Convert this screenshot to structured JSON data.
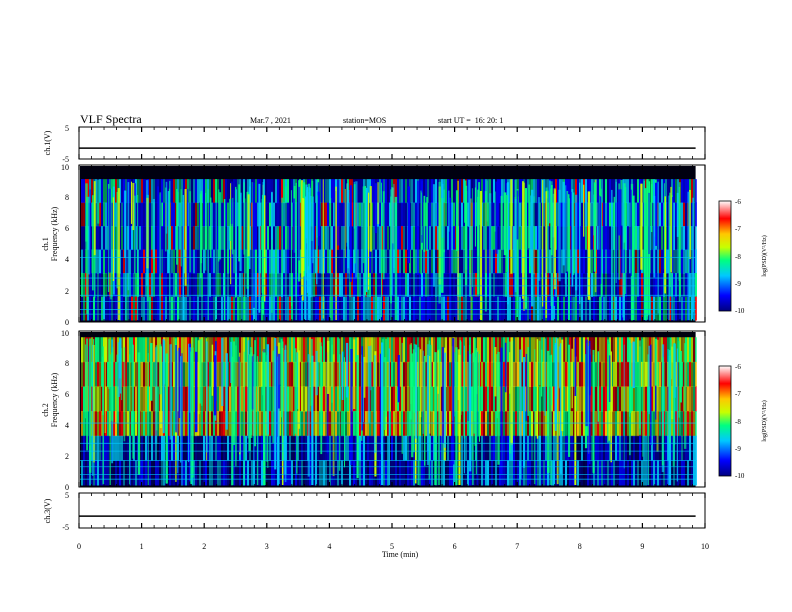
{
  "header": {
    "title": "VLF Spectra",
    "date": "Mar.7 , 2021",
    "station": "station=MOS",
    "start": "start UT =  16: 20: 1"
  },
  "panels": {
    "ch1_wave": {
      "ylabel": "ch.1(V)",
      "yticks": [
        "5",
        "-5"
      ]
    },
    "ch1_spec": {
      "ylabel_line1": "ch.1",
      "ylabel_line2": "Frequency (kHz)",
      "yticks": [
        "0",
        "2",
        "4",
        "6",
        "8",
        "10"
      ]
    },
    "ch2_spec": {
      "ylabel_line1": "ch.2",
      "ylabel_line2": "Frequency (kHz)",
      "yticks": [
        "0",
        "2",
        "4",
        "6",
        "8",
        "10"
      ]
    },
    "ch3_wave": {
      "ylabel": "ch.3(V)",
      "yticks": [
        "5",
        "-5"
      ]
    }
  },
  "colorbar": {
    "ticks": [
      "-6",
      "-7",
      "-8",
      "-9",
      "-10"
    ],
    "label": "log(PSD)(V²/Hz)",
    "colors": [
      "#000080",
      "#0000ff",
      "#00c8ff",
      "#00ff80",
      "#c8ff00",
      "#ffc800",
      "#ff0000",
      "#ffffff"
    ]
  },
  "xaxis": {
    "label": "Time (min)",
    "ticks": [
      "0",
      "1",
      "2",
      "3",
      "4",
      "5",
      "6",
      "7",
      "8",
      "9",
      "10"
    ]
  },
  "chart_data": [
    {
      "type": "line",
      "name": "ch.1(V) waveform",
      "xlabel": "Time (min)",
      "ylabel": "ch.1(V)",
      "xlim": [
        0,
        10
      ],
      "ylim": [
        -5,
        5
      ],
      "x": [
        0,
        9.85
      ],
      "values": [
        0,
        0
      ]
    },
    {
      "type": "heatmap",
      "name": "ch.1 spectrogram",
      "xlabel": "Time (min)",
      "ylabel": "Frequency (kHz)",
      "xlim": [
        0,
        10
      ],
      "ylim": [
        0,
        10
      ],
      "data_end_min": 9.85,
      "band_top_khz": 9.1,
      "colorbar_range": [
        -10,
        -6
      ],
      "colorbar_label": "log(PSD)(V²/Hz)"
    },
    {
      "type": "heatmap",
      "name": "ch.2 spectrogram",
      "xlabel": "Time (min)",
      "ylabel": "Frequency (kHz)",
      "xlim": [
        0,
        10
      ],
      "ylim": [
        0,
        10
      ],
      "data_end_min": 9.85,
      "band_top_khz": 9.6,
      "colorbar_range": [
        -10,
        -6
      ],
      "colorbar_label": "log(PSD)(V²/Hz)"
    },
    {
      "type": "line",
      "name": "ch.3(V) waveform",
      "xlabel": "Time (min)",
      "ylabel": "ch.3(V)",
      "xlim": [
        0,
        10
      ],
      "ylim": [
        -5,
        5
      ],
      "x": [
        0,
        9.85
      ],
      "values": [
        0,
        0
      ]
    }
  ]
}
